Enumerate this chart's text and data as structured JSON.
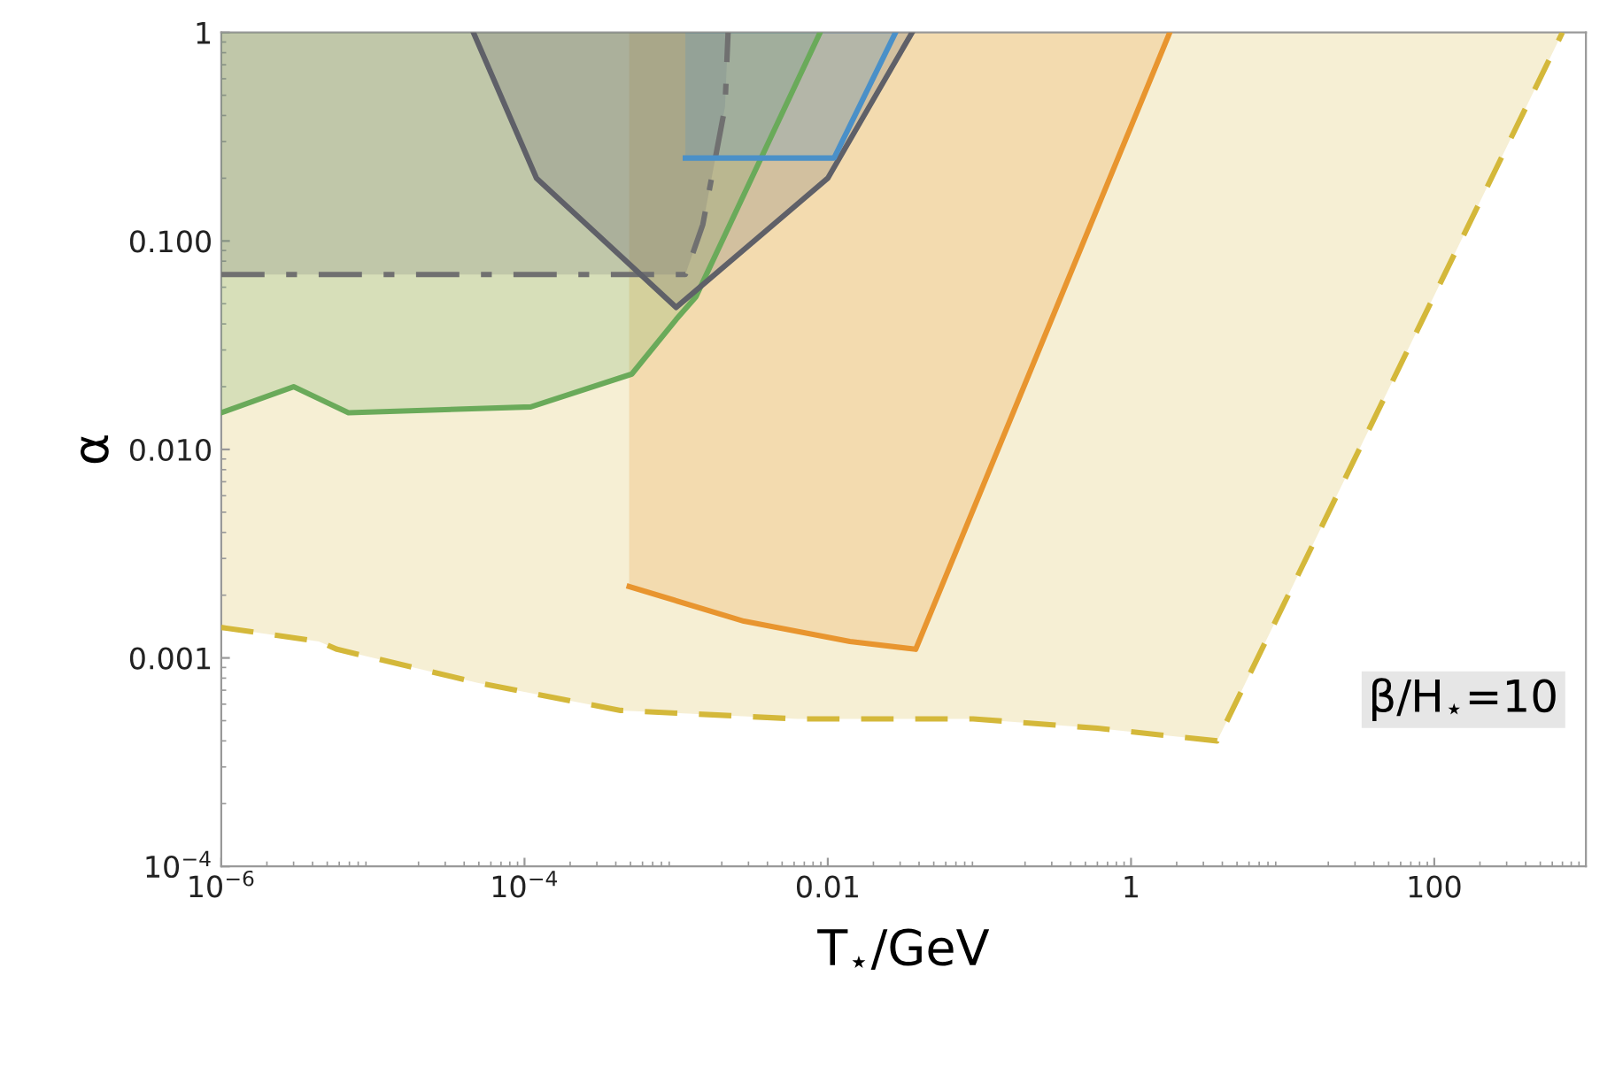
{
  "chart_data": {
    "type": "line",
    "xlabel": "T$_{⋆}$/GeV",
    "ylabel": "α",
    "log": "xy",
    "grid": false,
    "xlim": [
      1e-06,
      1000
    ],
    "ylim": [
      0.0001,
      1
    ],
    "xticks": [
      {
        "value": 1e-06,
        "label": "10$^{−6}$"
      },
      {
        "value": 0.0001,
        "label": "10$^{−4}$"
      },
      0.01,
      1,
      100
    ],
    "yticks": [
      {
        "value": 0.0001,
        "label": "10$^{−4}$"
      },
      0.001,
      {
        "value": 0.01,
        "label": "0.010"
      },
      {
        "value": 0.1,
        "label": "0.100"
      },
      1
    ],
    "series": [
      {
        "color": "#d4b83a",
        "line_style": "dashed",
        "x": [
          1e-06,
          4.4e-06,
          5.8e-06,
          4.9e-05,
          0.00043,
          0.0063,
          0.091,
          0.6,
          3.7,
          700
        ],
        "values": [
          0.0014,
          0.0012,
          0.0011,
          0.00076,
          0.00056,
          0.00051,
          0.00051,
          0.00046,
          0.0004,
          1
        ],
        "lower": [
          0.0014,
          0.0012,
          0.0011,
          0.00076,
          0.00056,
          0.00051,
          0.00051,
          0.00046,
          0.0004,
          1
        ],
        "upper": [
          1,
          1,
          1,
          1,
          1,
          1,
          1,
          1,
          1,
          1
        ]
      },
      {
        "color": "#e8952f",
        "line_style": "solid",
        "x": [
          0.00049,
          0.0028,
          0.014,
          0.038,
          1.8
        ],
        "values": [
          0.0022,
          0.0015,
          0.0012,
          0.0011,
          1
        ],
        "lower": [
          0.0022,
          0.0015,
          0.0012,
          0.0011,
          1
        ],
        "upper": [
          1,
          1,
          1,
          1,
          1
        ]
      },
      {
        "color": "#6aaa5a",
        "line_style": "solid",
        "x": [
          1e-06,
          3e-06,
          6.9e-06,
          0.00011,
          0.00051,
          0.001,
          0.00135,
          0.0089
        ],
        "values": [
          0.015,
          0.02,
          0.015,
          0.016,
          0.023,
          0.042,
          0.054,
          1
        ],
        "lower": [
          0.015,
          0.02,
          0.015,
          0.016,
          0.023,
          0.042,
          0.054,
          1
        ],
        "upper": [
          1,
          1,
          1,
          1,
          1,
          1,
          1,
          1
        ]
      },
      {
        "color": "#707070",
        "line_style": "dashdot",
        "x": [
          1e-06,
          0.00115,
          0.0015,
          0.0021,
          0.0022
        ],
        "values": [
          0.069,
          0.069,
          0.12,
          0.44,
          1
        ],
        "lower": [
          0.069,
          0.069,
          0.12,
          0.44,
          1
        ],
        "upper": [
          1,
          1,
          1,
          1,
          1
        ]
      },
      {
        "color": "#5f6068",
        "line_style": "solid",
        "x": [
          4.6e-05,
          0.00012,
          0.001,
          0.01,
          0.036
        ],
        "values": [
          1,
          0.2,
          0.048,
          0.2,
          1
        ],
        "lower": [
          1,
          0.2,
          0.048,
          0.2,
          1
        ],
        "upper": [
          1,
          1,
          1,
          1,
          1
        ]
      },
      {
        "color": "#4a90c8",
        "line_style": "solid",
        "x": [
          0.00115,
          0.011,
          0.028
        ],
        "values": [
          0.25,
          0.25,
          1
        ],
        "lower": [
          0.25,
          0.25,
          1
        ],
        "upper": [
          1,
          1,
          1
        ]
      }
    ],
    "annotations": [
      "β/H$_{⋆}$=10"
    ]
  }
}
